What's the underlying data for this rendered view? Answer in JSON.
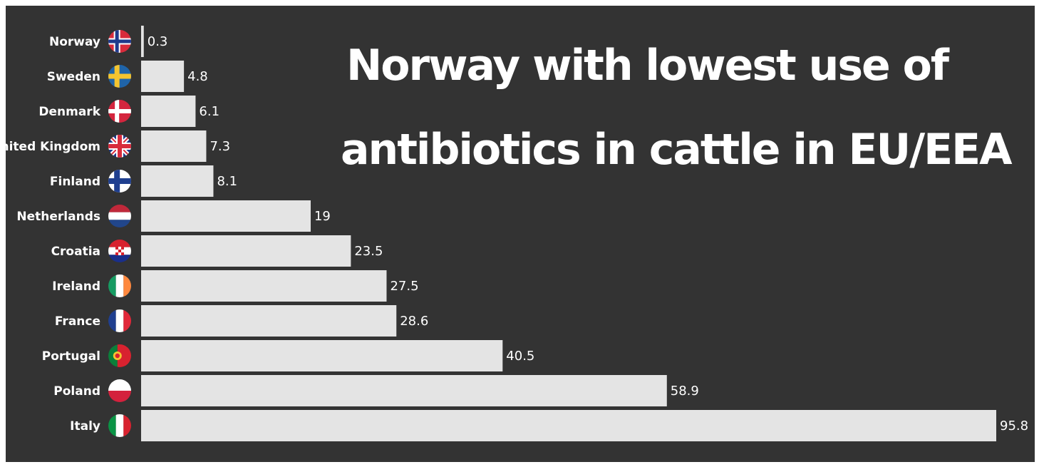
{
  "title": {
    "line1": "Norway with lowest use of",
    "line2": "antibiotics in cattle in EU/EEA"
  },
  "colors": {
    "background": "#333333",
    "bar": "#e4e4e4",
    "text": "#ffffff"
  },
  "chart_data": {
    "type": "bar",
    "orientation": "horizontal",
    "title": "Norway with lowest use of antibiotics in cattle in EU/EEA",
    "categories": [
      "Norway",
      "Sweden",
      "Denmark",
      "United Kingdom",
      "Finland",
      "Netherlands",
      "Croatia",
      "Ireland",
      "France",
      "Portugal",
      "Poland",
      "Italy"
    ],
    "values": [
      0.3,
      4.8,
      6.1,
      7.3,
      8.1,
      19,
      23.5,
      27.5,
      28.6,
      40.5,
      58.9,
      95.8
    ],
    "value_labels": [
      "0.3",
      "4.8",
      "6.1",
      "7.3",
      "8.1",
      "19",
      "23.5",
      "27.5",
      "28.6",
      "40.5",
      "58.9",
      "95.8"
    ],
    "flags": [
      "flag-norway-icon",
      "flag-sweden-icon",
      "flag-denmark-icon",
      "flag-united-kingdom-icon",
      "flag-finland-icon",
      "flag-netherlands-icon",
      "flag-croatia-icon",
      "flag-ireland-icon",
      "flag-france-icon",
      "flag-portugal-icon",
      "flag-poland-icon",
      "flag-italy-icon"
    ],
    "xlim": [
      0,
      95.8
    ],
    "grid": false,
    "legend": "none"
  }
}
